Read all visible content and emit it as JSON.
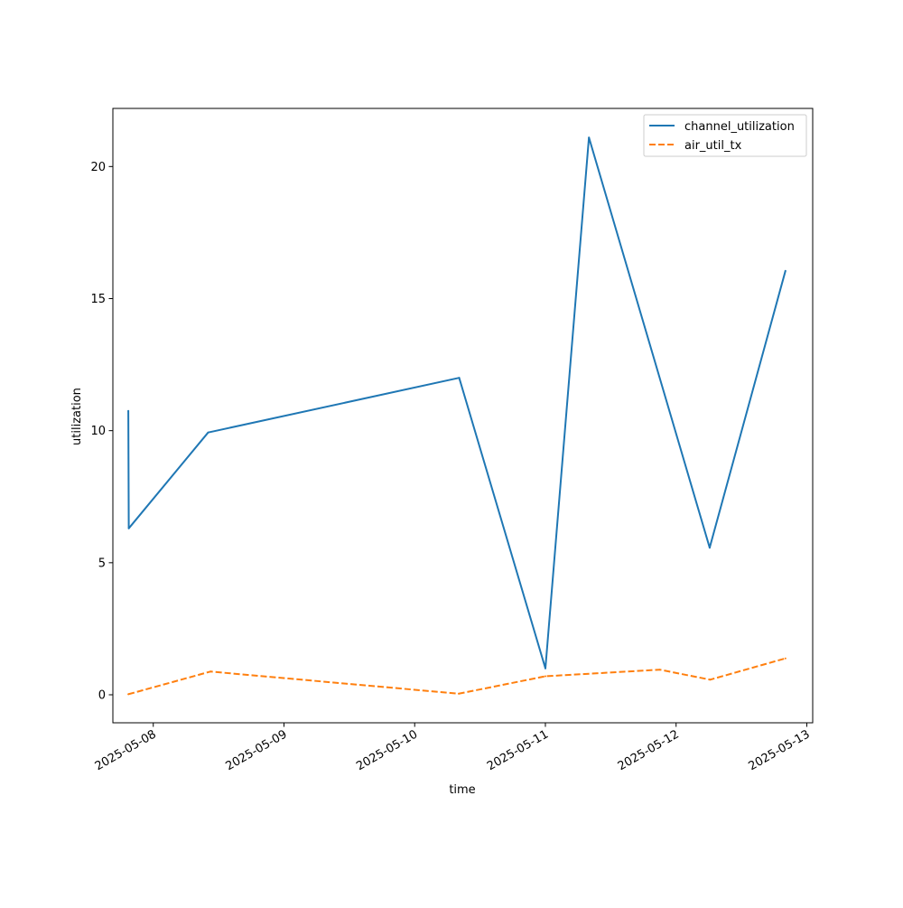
{
  "chart_data": {
    "type": "line",
    "xlabel": "time",
    "ylabel": "utilization",
    "x_tick_labels": [
      "2025-05-08",
      "2025-05-09",
      "2025-05-10",
      "2025-05-11",
      "2025-05-12",
      "2025-05-13"
    ],
    "y_tick_labels": [
      "0",
      "5",
      "10",
      "15",
      "20"
    ],
    "y_ticks": [
      0,
      5,
      10,
      15,
      20
    ],
    "xlim": [
      "2025-05-07 16:35",
      "2025-05-13 01:05"
    ],
    "ylim": [
      -1.06,
      22.2
    ],
    "grid": false,
    "legend_position": "top-right",
    "series": [
      {
        "name": "channel_utilization",
        "color": "#1f77b4",
        "dash": "solid",
        "points": [
          {
            "x": "2025-05-07 19:25",
            "y": 10.75
          },
          {
            "x": "2025-05-07 19:30",
            "y": 6.3
          },
          {
            "x": "2025-05-08 10:05",
            "y": 9.93
          },
          {
            "x": "2025-05-10 08:10",
            "y": 12.0
          },
          {
            "x": "2025-05-11 00:00",
            "y": 1.0
          },
          {
            "x": "2025-05-11 08:00",
            "y": 21.1
          },
          {
            "x": "2025-05-12 06:10",
            "y": 5.57
          },
          {
            "x": "2025-05-12 20:05",
            "y": 16.05
          }
        ]
      },
      {
        "name": "air_util_tx",
        "color": "#ff7f0e",
        "dash": "dashed",
        "points": [
          {
            "x": "2025-05-07 19:25",
            "y": 0.02
          },
          {
            "x": "2025-05-08 10:30",
            "y": 0.88
          },
          {
            "x": "2025-05-10 08:05",
            "y": 0.04
          },
          {
            "x": "2025-05-11 00:00",
            "y": 0.7
          },
          {
            "x": "2025-05-11 21:00",
            "y": 0.95
          },
          {
            "x": "2025-05-12 06:15",
            "y": 0.57
          },
          {
            "x": "2025-05-12 20:05",
            "y": 1.38
          }
        ]
      }
    ]
  }
}
